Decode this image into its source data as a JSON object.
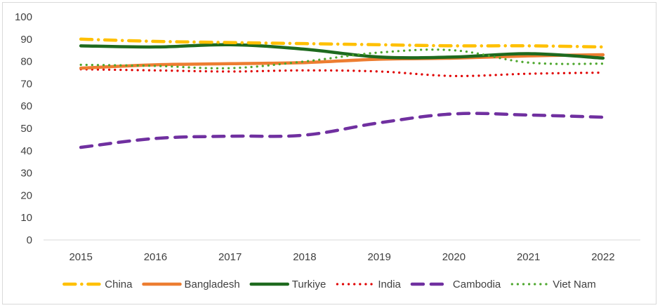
{
  "chart_data": {
    "type": "line",
    "title": "",
    "xlabel": "",
    "ylabel": "",
    "x": [
      "2015",
      "2016",
      "2017",
      "2018",
      "2019",
      "2020",
      "2021",
      "2022"
    ],
    "ylim": [
      0,
      100
    ],
    "yticks": [
      "0",
      "10",
      "20",
      "30",
      "40",
      "50",
      "60",
      "70",
      "80",
      "90",
      "100"
    ],
    "grid": false,
    "legend_position": "bottom",
    "series": [
      {
        "name": "China",
        "color": "#FFC000",
        "dash": "dash-dot",
        "values": [
          90,
          89,
          88.5,
          88,
          87.5,
          87,
          87,
          86.5
        ]
      },
      {
        "name": "Bangladesh",
        "color": "#ED7D31",
        "dash": "solid",
        "values": [
          77,
          78.5,
          79,
          79.5,
          81,
          81.5,
          82.5,
          83
        ]
      },
      {
        "name": "Turkiye",
        "color": "#1E6A1E",
        "dash": "solid",
        "values": [
          87,
          86.5,
          87.5,
          85.5,
          82,
          82,
          83.5,
          81.5
        ]
      },
      {
        "name": "India",
        "color": "#E00000",
        "dash": "dot",
        "values": [
          76.5,
          76,
          75.5,
          76,
          75.5,
          73.5,
          74.5,
          75
        ]
      },
      {
        "name": "Cambodia",
        "color": "#7030A0",
        "dash": "dash",
        "values": [
          41.5,
          45.5,
          46.5,
          47,
          52.5,
          56.5,
          56,
          55
        ]
      },
      {
        "name": "Viet Nam",
        "color": "#4EA72E",
        "dash": "dot",
        "values": [
          78.5,
          78,
          77,
          80,
          84,
          85,
          79.5,
          79
        ]
      }
    ]
  }
}
